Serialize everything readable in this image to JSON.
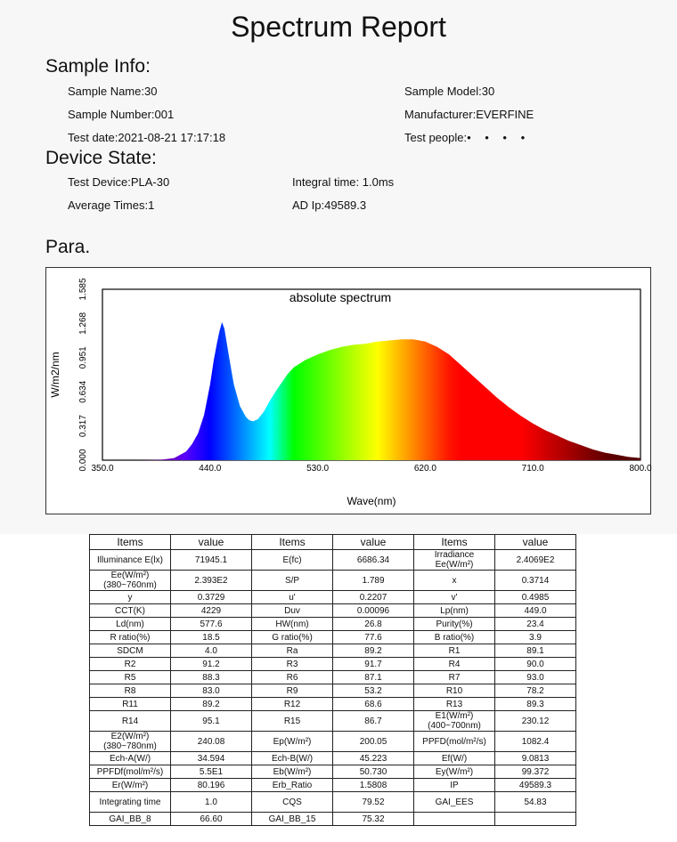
{
  "report": {
    "title": "Spectrum Report"
  },
  "sample_info": {
    "heading": "Sample Info:",
    "fields": [
      {
        "label": "Sample Name:",
        "value": "30"
      },
      {
        "label": "Sample Model:",
        "value": "30"
      },
      {
        "label": "Sample Number:",
        "value": "001"
      },
      {
        "label": "Manufacturer:",
        "value": "EVERFINE"
      },
      {
        "label": "Test date:",
        "value": "2021-08-21 17:17:18"
      },
      {
        "label": "Test people:",
        "value": "• • • •"
      }
    ]
  },
  "device_state": {
    "heading": "Device State:",
    "fields": [
      {
        "label": "Test Device:",
        "value": "PLA-30"
      },
      {
        "label": "Integral time: ",
        "value": "1.0ms"
      },
      {
        "label": "Average Times:",
        "value": "1"
      },
      {
        "label": "AD Ip:",
        "value": "49589.3"
      }
    ]
  },
  "para": {
    "heading": "Para."
  },
  "chart_data": {
    "type": "area",
    "title": "absolute spectrum",
    "xlabel": "Wave(nm)",
    "ylabel": "W/m2/nm",
    "xlim": [
      350,
      800
    ],
    "ylim": [
      0,
      1.585
    ],
    "x_ticks": [
      "350.0",
      "440.0",
      "530.0",
      "620.0",
      "710.0",
      "800.0"
    ],
    "y_ticks": [
      "0.000",
      "0.317",
      "0.634",
      "0.951",
      "1.268",
      "1.585"
    ],
    "grid": false,
    "x": [
      350,
      380,
      400,
      410,
      420,
      425,
      430,
      435,
      440,
      443,
      446,
      448,
      450,
      452,
      455,
      458,
      460,
      465,
      470,
      473,
      476,
      480,
      485,
      490,
      495,
      500,
      505,
      510,
      520,
      530,
      540,
      550,
      560,
      570,
      580,
      590,
      600,
      610,
      620,
      630,
      640,
      650,
      660,
      670,
      680,
      690,
      700,
      710,
      720,
      730,
      740,
      750,
      760,
      770,
      780,
      790,
      800
    ],
    "y": [
      0,
      0,
      0.005,
      0.02,
      0.08,
      0.15,
      0.25,
      0.42,
      0.7,
      0.92,
      1.1,
      1.2,
      1.28,
      1.22,
      1.02,
      0.82,
      0.7,
      0.5,
      0.4,
      0.37,
      0.36,
      0.38,
      0.45,
      0.55,
      0.64,
      0.72,
      0.8,
      0.86,
      0.93,
      0.98,
      1.02,
      1.05,
      1.07,
      1.08,
      1.1,
      1.11,
      1.12,
      1.12,
      1.1,
      1.05,
      0.98,
      0.88,
      0.78,
      0.68,
      0.58,
      0.49,
      0.41,
      0.34,
      0.28,
      0.23,
      0.18,
      0.14,
      0.1,
      0.07,
      0.05,
      0.03,
      0.02
    ]
  },
  "table": {
    "headers": [
      "Items",
      "value",
      "Items",
      "value",
      "Items",
      "value"
    ],
    "rows": [
      [
        "Illuminance E(lx)",
        "71945.1",
        "E(fc)",
        "6686.34",
        "Irradiance Ee(W/m²)",
        "2.4069E2"
      ],
      [
        "Ee(W/m²)(380~760nm)",
        "2.393E2",
        "S/P",
        "1.789",
        "x",
        "0.3714"
      ],
      [
        "y",
        "0.3729",
        "u'",
        "0.2207",
        "v'",
        "0.4985"
      ],
      [
        "CCT(K)",
        "4229",
        "Duv",
        "0.00096",
        "Lp(nm)",
        "449.0"
      ],
      [
        "Ld(nm)",
        "577.6",
        "HW(nm)",
        "26.8",
        "Purity(%)",
        "23.4"
      ],
      [
        "R ratio(%)",
        "18.5",
        "G ratio(%)",
        "77.6",
        "B ratio(%)",
        "3.9"
      ],
      [
        "SDCM",
        "4.0",
        "Ra",
        "89.2",
        "R1",
        "89.1"
      ],
      [
        "R2",
        "91.2",
        "R3",
        "91.7",
        "R4",
        "90.0"
      ],
      [
        "R5",
        "88.3",
        "R6",
        "87.1",
        "R7",
        "93.0"
      ],
      [
        "R8",
        "83.0",
        "R9",
        "53.2",
        "R10",
        "78.2"
      ],
      [
        "R11",
        "89.2",
        "R12",
        "68.6",
        "R13",
        "89.3"
      ],
      [
        "R14",
        "95.1",
        "R15",
        "86.7",
        "E1(W/m²)(400~700nm)",
        "230.12"
      ],
      [
        "E2(W/m²)(380~780nm)",
        "240.08",
        "Ep(W/m²)",
        "200.05",
        "PPFD(mol/m²/s)",
        "1082.4"
      ],
      [
        "Ech-A(W/)",
        "34.594",
        "Ech-B(W/)",
        "45.223",
        "Ef(W/)",
        "9.0813"
      ],
      [
        "PPFDf(mol/m²/s)",
        "5.5E1",
        "Eb(W/m²)",
        "50.730",
        "Ey(W/m²)",
        "99.372"
      ],
      [
        "Er(W/m²)",
        "80.196",
        "Erb_Ratio",
        "1.5808",
        "IP",
        "49589.3"
      ],
      [
        "Integrating time",
        "1.0",
        "CQS",
        "79.52",
        "GAI_EES",
        "54.83"
      ],
      [
        "GAI_BB_8",
        "66.60",
        "GAI_BB_15",
        "75.32",
        "",
        ""
      ]
    ]
  }
}
